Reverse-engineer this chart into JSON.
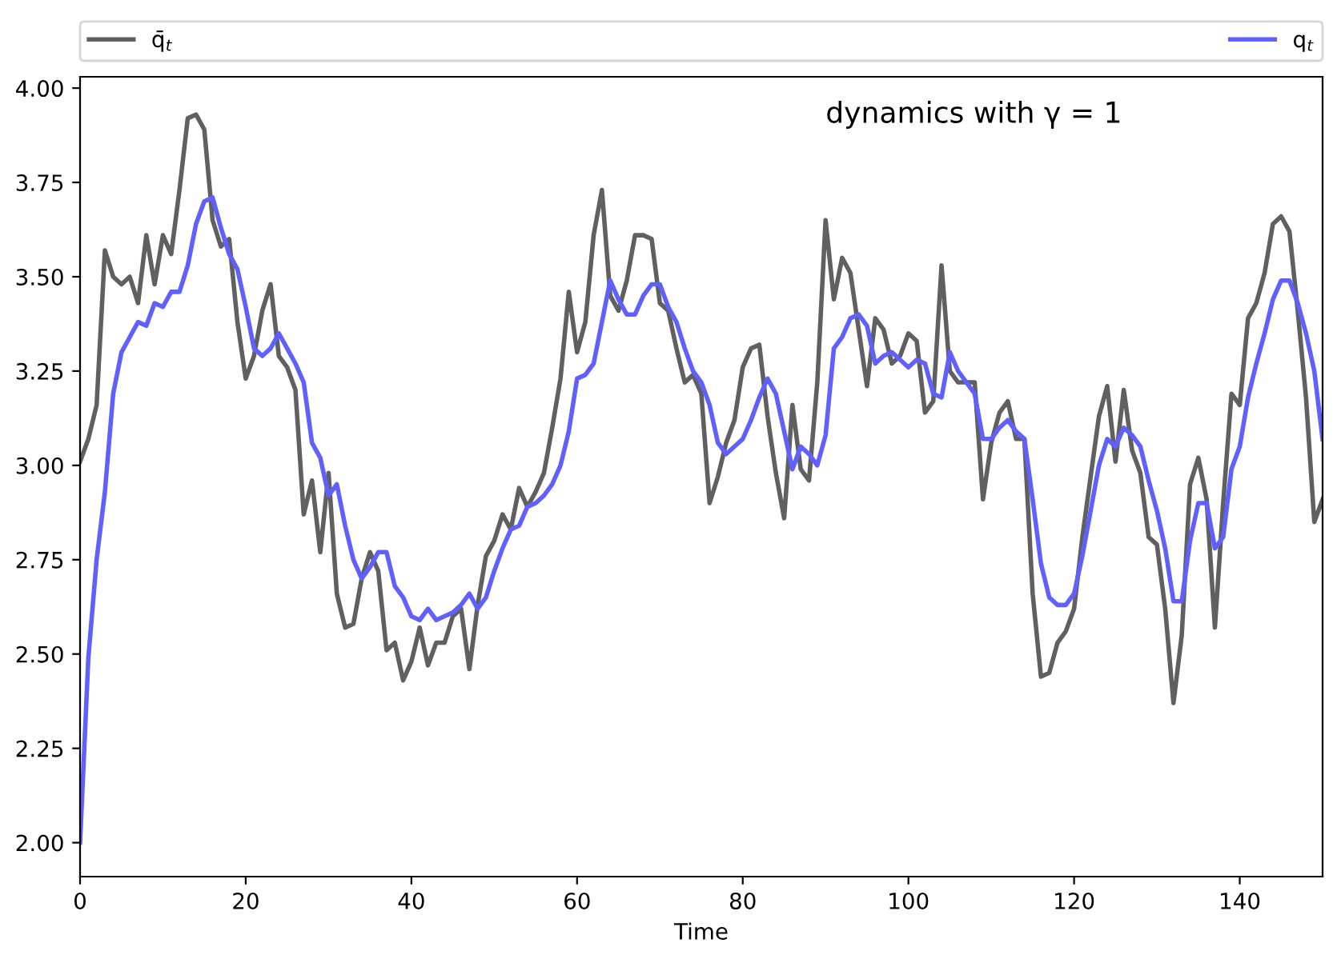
{
  "chart_data": {
    "type": "line",
    "xlabel": "Time",
    "annotations": [
      "dynamics with γ = 1"
    ],
    "xlim": [
      0,
      150
    ],
    "xticks": [
      0,
      20,
      40,
      60,
      80,
      100,
      120,
      140
    ],
    "ylim": [
      1.91,
      4.03
    ],
    "yticks": [
      {
        "value": 2.0,
        "label": "2.00"
      },
      {
        "value": 2.25,
        "label": "2.25"
      },
      {
        "value": 2.5,
        "label": "2.50"
      },
      {
        "value": 2.75,
        "label": "2.75"
      },
      {
        "value": 3.0,
        "label": "3.00"
      },
      {
        "value": 3.25,
        "label": "3.25"
      },
      {
        "value": 3.5,
        "label": "3.50"
      },
      {
        "value": 3.75,
        "label": "3.75"
      },
      {
        "value": 4.0,
        "label": "4.00"
      }
    ],
    "grid": false,
    "legend": "top",
    "marker": "none",
    "line_style": "solid",
    "x": [
      0,
      1,
      2,
      3,
      4,
      5,
      6,
      7,
      8,
      9,
      10,
      11,
      12,
      13,
      14,
      15,
      16,
      17,
      18,
      19,
      20,
      21,
      22,
      23,
      24,
      25,
      26,
      27,
      28,
      29,
      30,
      31,
      32,
      33,
      34,
      35,
      36,
      37,
      38,
      39,
      40,
      41,
      42,
      43,
      44,
      45,
      46,
      47,
      48,
      49,
      50,
      51,
      52,
      53,
      54,
      55,
      56,
      57,
      58,
      59,
      60,
      61,
      62,
      63,
      64,
      65,
      66,
      67,
      68,
      69,
      70,
      71,
      72,
      73,
      74,
      75,
      76,
      77,
      78,
      79,
      80,
      81,
      82,
      83,
      84,
      85,
      86,
      87,
      88,
      89,
      90,
      91,
      92,
      93,
      94,
      95,
      96,
      97,
      98,
      99,
      100,
      101,
      102,
      103,
      104,
      105,
      106,
      107,
      108,
      109,
      110,
      111,
      112,
      113,
      114,
      115,
      116,
      117,
      118,
      119,
      120,
      121,
      122,
      123,
      124,
      125,
      126,
      127,
      128,
      129,
      130,
      131,
      132,
      133,
      134,
      135,
      136,
      137,
      138,
      139,
      140,
      141,
      142,
      143,
      144,
      145,
      146,
      147,
      148,
      149,
      150
    ],
    "series": [
      {
        "name": "q̄$_{t}$",
        "color": "#606060",
        "values": [
          3.01,
          3.07,
          3.16,
          3.57,
          3.5,
          3.48,
          3.5,
          3.43,
          3.61,
          3.48,
          3.61,
          3.56,
          3.73,
          3.92,
          3.93,
          3.89,
          3.65,
          3.58,
          3.6,
          3.38,
          3.23,
          3.29,
          3.41,
          3.48,
          3.29,
          3.26,
          3.2,
          2.87,
          2.96,
          2.77,
          2.98,
          2.66,
          2.57,
          2.58,
          2.7,
          2.77,
          2.72,
          2.51,
          2.53,
          2.43,
          2.48,
          2.57,
          2.47,
          2.53,
          2.53,
          2.6,
          2.62,
          2.46,
          2.63,
          2.76,
          2.8,
          2.87,
          2.83,
          2.94,
          2.89,
          2.93,
          2.98,
          3.1,
          3.23,
          3.46,
          3.3,
          3.38,
          3.61,
          3.73,
          3.45,
          3.41,
          3.49,
          3.61,
          3.61,
          3.6,
          3.43,
          3.41,
          3.31,
          3.22,
          3.24,
          3.19,
          2.9,
          2.97,
          3.06,
          3.12,
          3.26,
          3.31,
          3.32,
          3.13,
          2.98,
          2.86,
          3.16,
          2.99,
          2.96,
          3.22,
          3.65,
          3.44,
          3.55,
          3.51,
          3.36,
          3.21,
          3.39,
          3.36,
          3.27,
          3.29,
          3.35,
          3.33,
          3.14,
          3.17,
          3.53,
          3.25,
          3.22,
          3.22,
          3.22,
          2.91,
          3.06,
          3.14,
          3.17,
          3.07,
          3.07,
          2.66,
          2.44,
          2.45,
          2.53,
          2.56,
          2.62,
          2.81,
          2.97,
          3.13,
          3.21,
          3.01,
          3.2,
          3.04,
          2.98,
          2.81,
          2.79,
          2.62,
          2.37,
          2.55,
          2.95,
          3.02,
          2.91,
          2.57,
          2.9,
          3.19,
          3.16,
          3.39,
          3.43,
          3.51,
          3.64,
          3.66,
          3.62,
          3.41,
          3.18,
          2.85,
          2.91
        ]
      },
      {
        "name": "q$_{t}$",
        "color": "#6060ff",
        "values": [
          2.0,
          2.49,
          2.75,
          2.93,
          3.19,
          3.3,
          3.34,
          3.38,
          3.37,
          3.43,
          3.42,
          3.46,
          3.46,
          3.53,
          3.64,
          3.7,
          3.71,
          3.63,
          3.56,
          3.52,
          3.42,
          3.31,
          3.29,
          3.31,
          3.35,
          3.31,
          3.27,
          3.22,
          3.06,
          3.02,
          2.92,
          2.95,
          2.84,
          2.75,
          2.7,
          2.73,
          2.77,
          2.77,
          2.68,
          2.65,
          2.6,
          2.59,
          2.62,
          2.59,
          2.6,
          2.61,
          2.63,
          2.66,
          2.62,
          2.65,
          2.72,
          2.78,
          2.83,
          2.84,
          2.89,
          2.9,
          2.92,
          2.95,
          3.0,
          3.09,
          3.23,
          3.24,
          3.27,
          3.38,
          3.49,
          3.44,
          3.4,
          3.4,
          3.45,
          3.48,
          3.48,
          3.42,
          3.38,
          3.31,
          3.25,
          3.22,
          3.16,
          3.06,
          3.03,
          3.05,
          3.07,
          3.12,
          3.18,
          3.23,
          3.19,
          3.09,
          2.99,
          3.05,
          3.03,
          3.0,
          3.08,
          3.31,
          3.34,
          3.39,
          3.4,
          3.37,
          3.27,
          3.29,
          3.3,
          3.28,
          3.26,
          3.28,
          3.27,
          3.19,
          3.18,
          3.3,
          3.25,
          3.22,
          3.19,
          3.07,
          3.07,
          3.1,
          3.12,
          3.09,
          3.07,
          2.91,
          2.74,
          2.65,
          2.63,
          2.63,
          2.66,
          2.76,
          2.88,
          3.0,
          3.07,
          3.05,
          3.1,
          3.08,
          3.05,
          2.96,
          2.88,
          2.78,
          2.64,
          2.64,
          2.8,
          2.9,
          2.9,
          2.78,
          2.81,
          2.99,
          3.05,
          3.18,
          3.27,
          3.35,
          3.44,
          3.49,
          3.49,
          3.43,
          3.35,
          3.25,
          3.07
        ]
      }
    ]
  }
}
